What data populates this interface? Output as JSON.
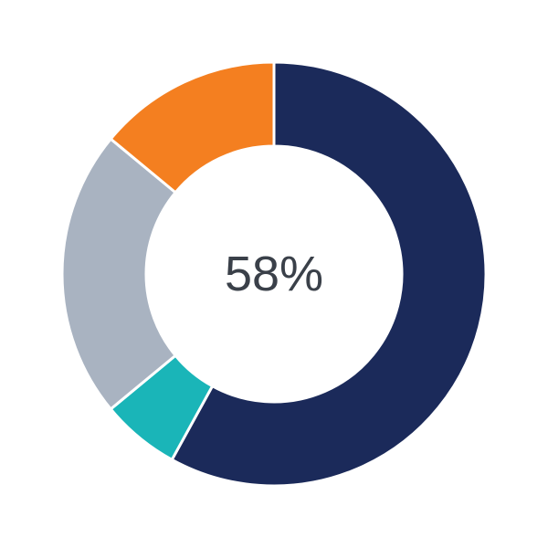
{
  "chart_data": {
    "type": "pie",
    "variant": "donut",
    "center_label": "58%",
    "start": "top",
    "direction": "clockwise",
    "values": [
      58,
      6,
      22,
      14
    ],
    "colors": [
      "#1b2a5a",
      "#1ab5b8",
      "#a9b3c1",
      "#f47f20"
    ],
    "legend": "none"
  },
  "colors": {
    "center_text": "#3a4049",
    "separator": "#ffffff"
  }
}
